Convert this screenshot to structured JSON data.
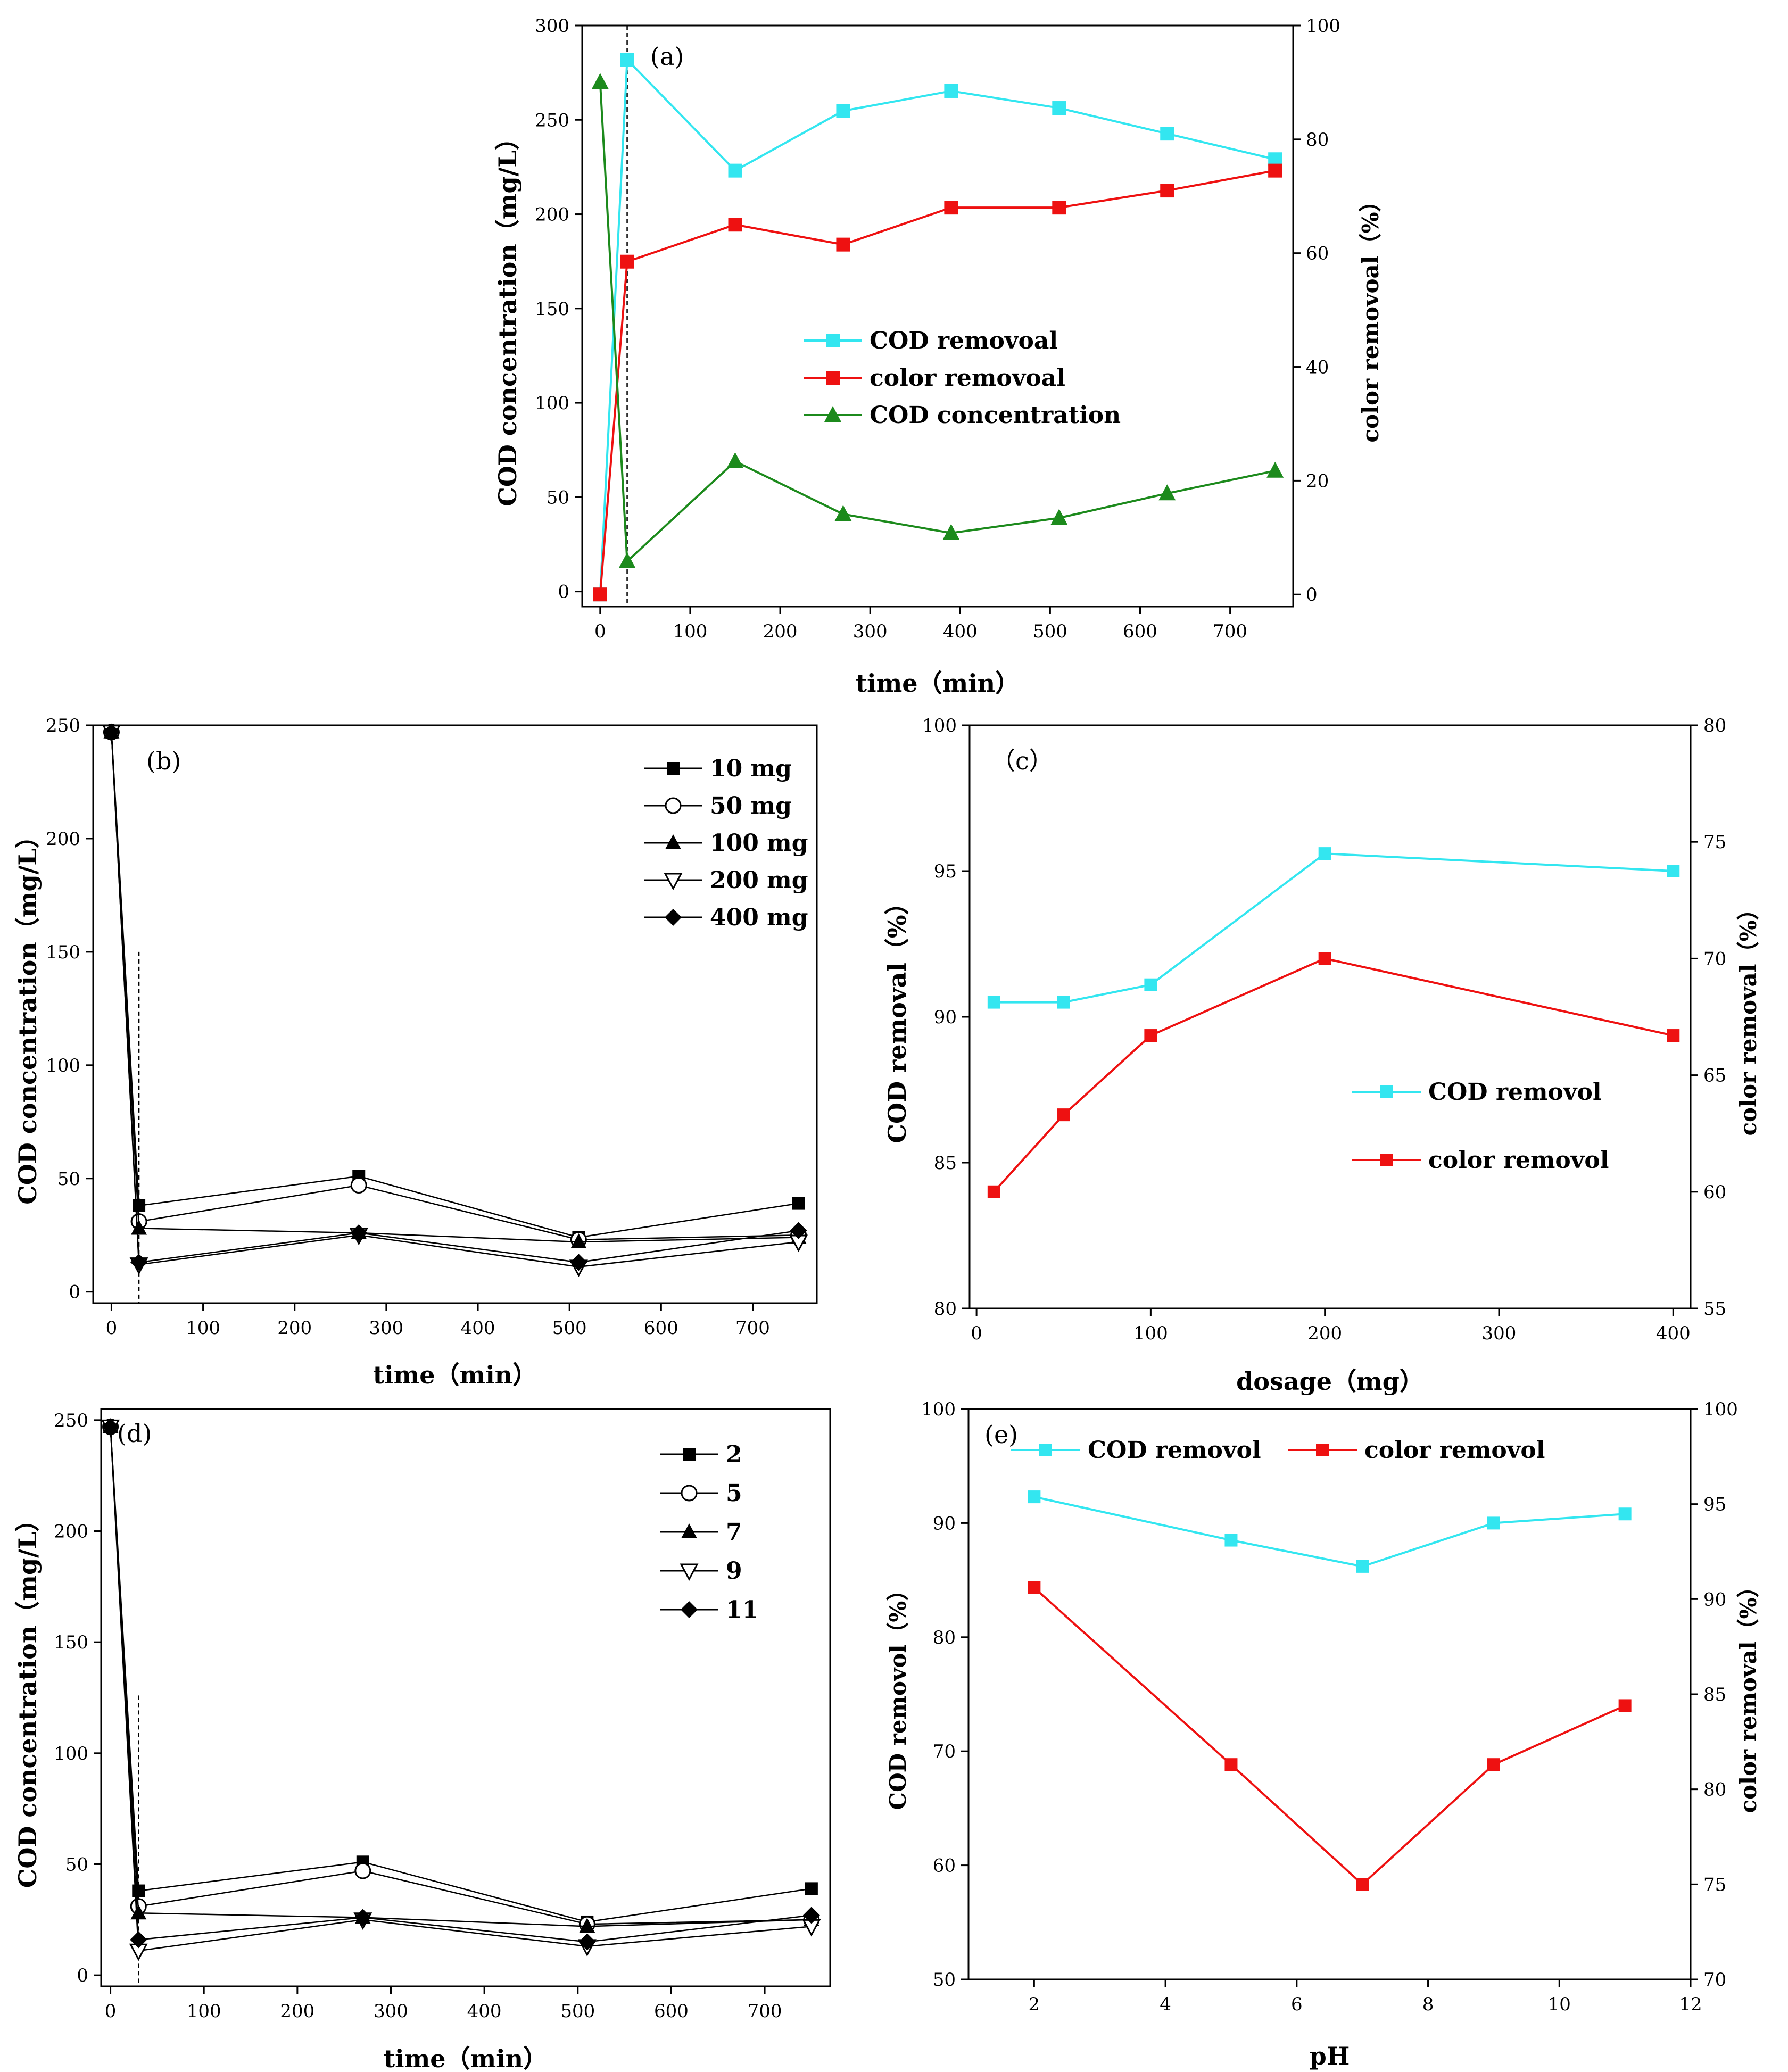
{
  "figure": "Multi-panel COD and color removal figure",
  "chart_data": [
    {
      "id": "a",
      "type": "line",
      "panel_label": "(a)",
      "xlabel": "time（min）",
      "ylabel": "COD concentration（mg/L）",
      "y2label": "color removoal（%）",
      "xlim": [
        -20,
        770
      ],
      "ylim": [
        -8,
        300
      ],
      "y2lim": [
        -2.13,
        100
      ],
      "xticks": [
        0,
        100,
        200,
        300,
        400,
        500,
        600,
        700
      ],
      "yticks": [
        0,
        50,
        100,
        150,
        200,
        250,
        300
      ],
      "y2ticks": [
        0,
        20,
        40,
        60,
        80,
        100
      ],
      "vline_x": 30,
      "x": [
        0,
        30,
        150,
        270,
        390,
        510,
        630,
        750
      ],
      "series": [
        {
          "name": "COD removoal",
          "axis": "right",
          "color": "#33e6f0",
          "marker": "square",
          "values": [
            0,
            94,
            74.5,
            85,
            88.5,
            85.5,
            81,
            76.5
          ]
        },
        {
          "name": "color removoal",
          "axis": "right",
          "color": "#ee1111",
          "marker": "square",
          "values": [
            0,
            58.5,
            65,
            61.5,
            68,
            68,
            71,
            74.5
          ]
        },
        {
          "name": "COD concentration",
          "axis": "left",
          "color": "#1c8a1c",
          "marker": "triangle",
          "values": [
            270,
            16,
            69,
            41,
            31,
            39,
            52,
            64
          ]
        }
      ]
    },
    {
      "id": "b",
      "type": "line",
      "panel_label": "(b)",
      "xlabel": "time（min）",
      "ylabel": "COD concentration（mg/L）",
      "xlim": [
        -20,
        770
      ],
      "ylim": [
        -5,
        250
      ],
      "xticks": [
        0,
        100,
        200,
        300,
        400,
        500,
        600,
        700
      ],
      "yticks": [
        0,
        50,
        100,
        150,
        200,
        250
      ],
      "vline_x": 30,
      "vline_top": 150,
      "x": [
        0,
        30,
        270,
        510,
        750
      ],
      "series": [
        {
          "name": "10 mg",
          "marker": "square-filled",
          "values": [
            247,
            38,
            51,
            24,
            39
          ]
        },
        {
          "name": "50 mg",
          "marker": "circle-open",
          "values": [
            247,
            31,
            47,
            23,
            25
          ]
        },
        {
          "name": "100 mg",
          "marker": "triangle-filled",
          "values": [
            247,
            28,
            26,
            22,
            24
          ]
        },
        {
          "name": "200 mg",
          "marker": "triangle-down-open",
          "values": [
            247,
            12,
            25,
            11,
            22
          ]
        },
        {
          "name": "400 mg",
          "marker": "diamond-filled",
          "values": [
            247,
            13,
            26,
            13,
            27
          ]
        }
      ]
    },
    {
      "id": "c",
      "type": "line",
      "panel_label": "（c）",
      "xlabel": "dosage（mg）",
      "ylabel": "COD removal（%）",
      "y2label": "color removal（%）",
      "xlim": [
        -4,
        410
      ],
      "ylim": [
        80,
        100
      ],
      "y2lim": [
        55,
        80
      ],
      "xticks": [
        0,
        100,
        200,
        300,
        400
      ],
      "yticks": [
        80,
        85,
        90,
        95,
        100
      ],
      "y2ticks": [
        55,
        60,
        65,
        70,
        75,
        80
      ],
      "x": [
        10,
        50,
        100,
        200,
        400
      ],
      "series": [
        {
          "name": "COD removol",
          "axis": "left",
          "color": "#33e6f0",
          "marker": "square",
          "values": [
            90.5,
            90.5,
            91.1,
            95.6,
            95.0
          ]
        },
        {
          "name": "color removol",
          "axis": "right",
          "color": "#ee1111",
          "marker": "square",
          "values": [
            60,
            63.3,
            66.7,
            70,
            66.7
          ]
        }
      ]
    },
    {
      "id": "d",
      "type": "line",
      "panel_label": "(d)",
      "xlabel": "time（min）",
      "ylabel": "COD concentration（mg/L）",
      "xlim": [
        -10,
        770
      ],
      "ylim": [
        -5,
        255
      ],
      "xticks": [
        0,
        100,
        200,
        300,
        400,
        500,
        600,
        700
      ],
      "yticks": [
        0,
        50,
        100,
        150,
        200,
        250
      ],
      "vline_x": 30,
      "vline_top": 126,
      "x": [
        0,
        30,
        270,
        510,
        750
      ],
      "series": [
        {
          "name": "2",
          "marker": "square-filled",
          "values": [
            247,
            38,
            51,
            24,
            39
          ]
        },
        {
          "name": "5",
          "marker": "circle-open",
          "values": [
            247,
            31,
            47,
            23,
            25
          ]
        },
        {
          "name": "7",
          "marker": "triangle-filled",
          "values": [
            247,
            28,
            26,
            22,
            25
          ]
        },
        {
          "name": "9",
          "marker": "triangle-down-open",
          "values": [
            247,
            11,
            25,
            13,
            22
          ]
        },
        {
          "name": "11",
          "marker": "diamond-filled",
          "values": [
            247,
            16,
            26,
            15,
            27
          ]
        }
      ]
    },
    {
      "id": "e",
      "type": "line",
      "panel_label": "(e)",
      "xlabel": "pH",
      "ylabel": "COD removol（%）",
      "y2label": "color removal（%）",
      "xlim": [
        1,
        12
      ],
      "ylim": [
        50,
        100
      ],
      "y2lim": [
        70,
        100
      ],
      "xticks": [
        2,
        4,
        6,
        8,
        10,
        12
      ],
      "yticks": [
        50,
        60,
        70,
        80,
        90,
        100
      ],
      "y2ticks": [
        70,
        75,
        80,
        85,
        90,
        95,
        100
      ],
      "x": [
        2,
        5,
        7,
        9,
        11
      ],
      "series": [
        {
          "name": "COD removol",
          "axis": "left",
          "color": "#33e6f0",
          "marker": "square",
          "values": [
            92.3,
            88.5,
            86.2,
            90.0,
            90.8
          ]
        },
        {
          "name": "color removol",
          "axis": "right",
          "color": "#ee1111",
          "marker": "square",
          "values": [
            90.6,
            81.3,
            75.0,
            81.3,
            84.4
          ]
        }
      ]
    }
  ]
}
